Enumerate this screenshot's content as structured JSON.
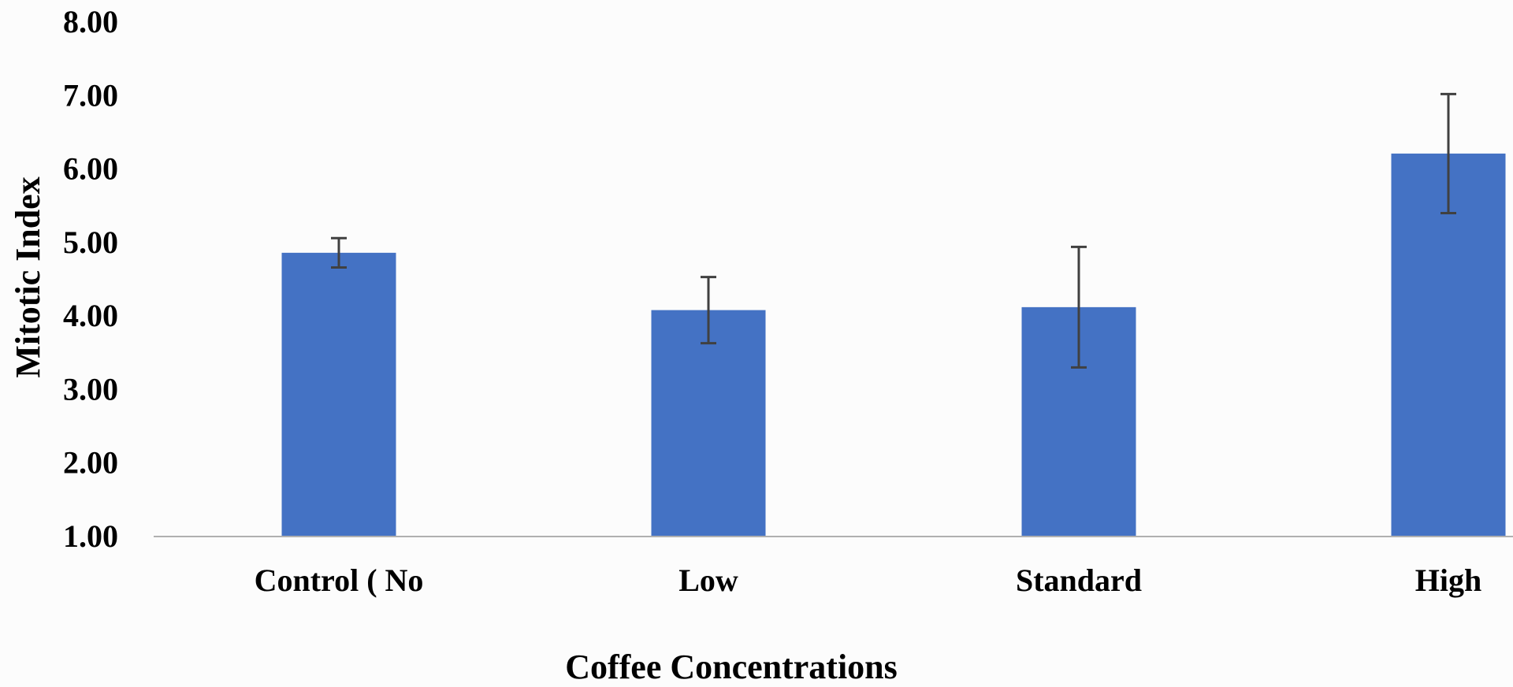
{
  "chart_data": {
    "type": "bar",
    "title": "",
    "xlabel": "Coffee Concentrations",
    "ylabel": "Mitotic Index",
    "categories": [
      "Control ( No",
      "Low",
      "Standard",
      "High"
    ],
    "values": [
      4.85,
      4.07,
      4.11,
      6.2
    ],
    "error": [
      0.2,
      0.45,
      0.82,
      0.81
    ],
    "ylim": [
      1.0,
      8.0
    ],
    "yticks": [
      "1.00",
      "2.00",
      "3.00",
      "4.00",
      "5.00",
      "6.00",
      "7.00",
      "8.00"
    ],
    "grid": false,
    "legend": "none",
    "colors": {
      "bar": "#4472c4",
      "error_bar": "#404040",
      "axis_line": "#b0b0b0",
      "background": "#fcfcfc"
    }
  }
}
